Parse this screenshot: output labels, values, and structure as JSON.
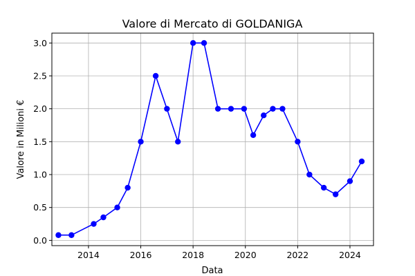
{
  "chart_data": {
    "type": "line",
    "title": "Valore di Mercato di GOLDANIGA",
    "xlabel": "Data",
    "ylabel": "Valore in Milioni €",
    "x_ticks": [
      2014,
      2016,
      2018,
      2020,
      2022,
      2024
    ],
    "y_ticks": [
      "0.0",
      "0.5",
      "1.0",
      "1.5",
      "2.0",
      "2.5",
      "3.0"
    ],
    "xlim": [
      2012.6,
      2024.9
    ],
    "ylim": [
      -0.08,
      3.15
    ],
    "grid": true,
    "line_color": "#0000ff",
    "marker": "circle",
    "series": [
      {
        "x": [
          2012.85,
          2013.35,
          2014.2,
          2014.57,
          2015.1,
          2015.5,
          2016.0,
          2016.57,
          2017.0,
          2017.42,
          2018.0,
          2018.42,
          2018.95,
          2019.45,
          2019.95,
          2020.3,
          2020.7,
          2021.05,
          2021.42,
          2022.0,
          2022.45,
          2023.0,
          2023.45,
          2024.0,
          2024.45
        ],
        "y": [
          0.08,
          0.08,
          0.25,
          0.35,
          0.5,
          0.8,
          1.5,
          2.5,
          2.0,
          1.5,
          3.0,
          3.0,
          2.0,
          2.0,
          2.0,
          1.6,
          1.9,
          2.0,
          2.0,
          1.5,
          1.0,
          0.8,
          0.7,
          0.9,
          1.2
        ]
      }
    ]
  }
}
